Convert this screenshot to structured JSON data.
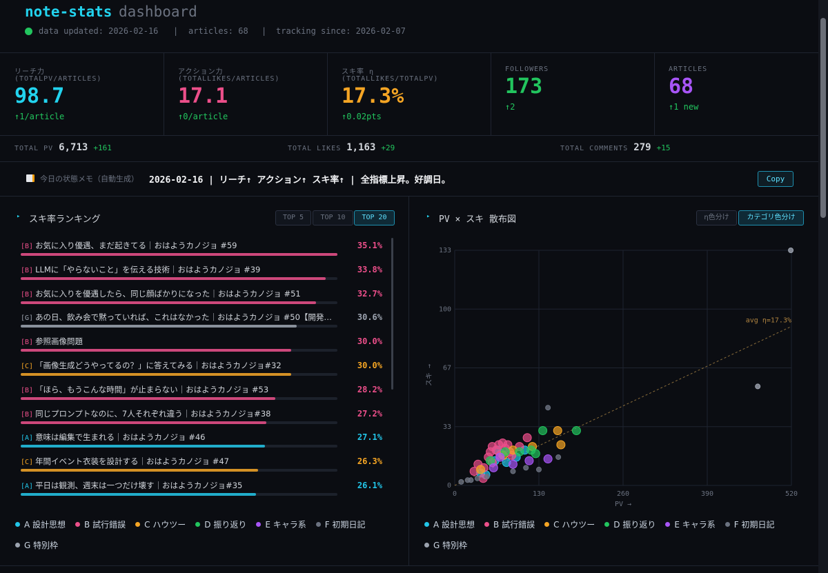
{
  "header": {
    "title": "note-stats",
    "subtitle": "dashboard",
    "meta": [
      "data updated: 2026-02-16",
      "articles: 68",
      "tracking since: 2026-02-07"
    ],
    "separator": "|"
  },
  "kpis": [
    {
      "label": "リーチ力",
      "formula": "(TOTALPV/ARTICLES)",
      "value": "98.7",
      "delta": "↑1/article",
      "color": "#22d3ee"
    },
    {
      "label": "アクション力",
      "formula": "(TOTALLIKES/ARTICLES)",
      "value": "17.1",
      "delta": "↑0/article",
      "color": "#ec4f8a"
    },
    {
      "label": "スキ率 η",
      "formula": "(TOTALLIKES/TOTALPV)",
      "value": "17.3%",
      "delta": "↑0.02pts",
      "color": "#f5a524"
    },
    {
      "label": "FOLLOWERS",
      "value": "173",
      "delta": "↑2",
      "color": "#22c55e"
    },
    {
      "label": "ARTICLES",
      "value": "68",
      "delta": "↑1 new",
      "color": "#a855f7"
    }
  ],
  "totals": [
    {
      "label": "TOTAL PV",
      "value": "6,713",
      "delta": "+161"
    },
    {
      "label": "TOTAL LIKES",
      "value": "1,163",
      "delta": "+29"
    },
    {
      "label": "TOTAL COMMENTS",
      "value": "279",
      "delta": "+15"
    }
  ],
  "memo": {
    "label": "今日の状態メモ（自動生成）",
    "text": "2026-02-16 | リーチ↑ アクション↑ スキ率↑ | 全指標上昇。好調日。",
    "button": "Copy"
  },
  "ranking": {
    "title": "スキ率ランキング",
    "buttons": [
      "TOP 5",
      "TOP 10",
      "TOP 20"
    ],
    "active": 2,
    "items": [
      {
        "tag": "[B]",
        "title": "お気に入り優遇、まだ起きてる｜おはようカノジョ #59",
        "value": 35.1,
        "label": "35.1%",
        "color": "#ec4f8a"
      },
      {
        "tag": "[B]",
        "title": "LLMに「やらないこと」を伝える技術｜おはようカノジョ #39",
        "value": 33.8,
        "label": "33.8%",
        "color": "#ec4f8a"
      },
      {
        "tag": "[B]",
        "title": "お気に入りを優遇したら、同じ顔ばかりになった｜おはようカノジョ #51",
        "value": 32.7,
        "label": "32.7%",
        "color": "#ec4f8a"
      },
      {
        "tag": "[G]",
        "title": "あの日、飲み会で黙っていれば、これはなかった｜おはようカノジョ #50【開発…",
        "value": 30.6,
        "label": "30.6%",
        "color": "#9ca3af"
      },
      {
        "tag": "[B]",
        "title": "参照画像問題",
        "value": 30.0,
        "label": "30.0%",
        "color": "#ec4f8a"
      },
      {
        "tag": "[C]",
        "title": "「画像生成どうやってるの？」に答えてみる｜おはようカノジョ#32",
        "value": 30.0,
        "label": "30.0%",
        "color": "#f5a524"
      },
      {
        "tag": "[B]",
        "title": "「ほら、もうこんな時間」が止まらない｜おはようカノジョ #53",
        "value": 28.2,
        "label": "28.2%",
        "color": "#ec4f8a"
      },
      {
        "tag": "[B]",
        "title": "同じプロンプトなのに、7人それぞれ違う｜おはようカノジョ#38",
        "value": 27.2,
        "label": "27.2%",
        "color": "#ec4f8a"
      },
      {
        "tag": "[A]",
        "title": "意味は編集で生まれる｜おはようカノジョ #46",
        "value": 27.1,
        "label": "27.1%",
        "color": "#22c5e8"
      },
      {
        "tag": "[C]",
        "title": "年間イベント衣装を設計する｜おはようカノジョ #47",
        "value": 26.3,
        "label": "26.3%",
        "color": "#f5a524"
      },
      {
        "tag": "[A]",
        "title": "平日は観測、週末は一つだけ壊す｜おはようカノジョ#35",
        "value": 26.1,
        "label": "26.1%",
        "color": "#22c5e8"
      }
    ]
  },
  "chart_data": {
    "type": "scatter",
    "title": "PV × スキ 散布図",
    "buttons": [
      "η色分け",
      "カテゴリ色分け"
    ],
    "active_button": 1,
    "x_label": "PV →",
    "y_label": "スキ →",
    "xlim": [
      0,
      520
    ],
    "ylim": [
      0,
      133
    ],
    "xticks": [
      0,
      130,
      260,
      390,
      520
    ],
    "yticks": [
      0,
      {
        "value": 33.25,
        "label": "33"
      },
      {
        "value": 66.5,
        "label": "67"
      },
      {
        "value": 99.75,
        "label": "100"
      },
      133
    ],
    "grid": true,
    "avg_line": {
      "slope": 17.3,
      "label": "avg η=17.3%"
    },
    "series": [
      {
        "name": "A 設計思想",
        "color": "#22c5e8",
        "x": [
          40,
          48,
          62,
          72,
          80,
          95,
          108,
          66
        ],
        "y": [
          7,
          6,
          14,
          18,
          13,
          16,
          20,
          20
        ]
      },
      {
        "name": "B 試行錯誤",
        "color": "#ec4f8a",
        "x": [
          30,
          45,
          52,
          55,
          58,
          64,
          68,
          74,
          78,
          85,
          88,
          100,
          112,
          58,
          44,
          70,
          82,
          36
        ],
        "y": [
          8,
          10,
          16,
          19,
          22,
          20,
          23,
          24,
          21,
          19,
          17,
          22,
          27,
          13,
          4,
          17,
          23,
          12
        ]
      },
      {
        "name": "C ハウツー",
        "color": "#f5a524",
        "x": [
          40,
          75,
          90,
          159,
          164,
          120
        ],
        "y": [
          9,
          17,
          20,
          31,
          23,
          22
        ]
      },
      {
        "name": "D 振り返り",
        "color": "#22c55e",
        "x": [
          55,
          78,
          100,
          118,
          136,
          188,
          125
        ],
        "y": [
          14,
          19,
          19,
          20,
          31,
          31,
          18
        ]
      },
      {
        "name": "E キャラ系",
        "color": "#a855f7",
        "x": [
          60,
          90,
          115,
          144,
          70
        ],
        "y": [
          10,
          12,
          14,
          15,
          16
        ]
      },
      {
        "name": "F 初期日記",
        "color": "#6b7280",
        "x": [
          10,
          20,
          25,
          35,
          50,
          90,
          110,
          160,
          144,
          130
        ],
        "y": [
          2,
          3,
          3,
          4,
          5,
          8,
          10,
          16,
          44,
          9
        ]
      },
      {
        "name": "G 特別枠",
        "color": "#9ca3af",
        "x": [
          519,
          468
        ],
        "y": [
          133,
          56
        ]
      }
    ]
  }
}
